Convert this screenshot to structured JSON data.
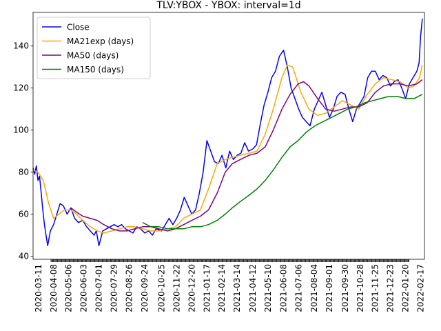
{
  "chart_data": {
    "type": "line",
    "title": "TLV:YBOX - YBOX: interval=1d",
    "xlabel": "",
    "ylabel": "",
    "grid": false,
    "legend_position": "top-left",
    "x_range": [
      "2020-03-01",
      "2022-02-24"
    ],
    "ylim": [
      38.5,
      156
    ],
    "y_ticks": [
      40,
      60,
      80,
      100,
      120,
      140
    ],
    "x_ticks": [
      "2020-03-11",
      "2020-04-08",
      "2020-05-06",
      "2020-06-03",
      "2020-07-01",
      "2020-07-29",
      "2020-08-26",
      "2020-09-24",
      "2020-10-25",
      "2020-11-22",
      "2020-12-20",
      "2021-01-17",
      "2021-02-14",
      "2021-03-14",
      "2021-04-12",
      "2021-05-10",
      "2021-06-08",
      "2021-07-06",
      "2021-08-04",
      "2021-09-01",
      "2021-09-30",
      "2021-10-28",
      "2021-11-25",
      "2021-12-23",
      "2022-01-20",
      "2022-02-17"
    ],
    "series": [
      {
        "name": "Close",
        "color": "#0000ff",
        "x": [
          "2020-03-01",
          "2020-03-04",
          "2020-03-07",
          "2020-03-10",
          "2020-03-13",
          "2020-03-16",
          "2020-03-19",
          "2020-03-22",
          "2020-03-25",
          "2020-03-28",
          "2020-04-02",
          "2020-04-08",
          "2020-04-14",
          "2020-04-20",
          "2020-04-26",
          "2020-05-03",
          "2020-05-10",
          "2020-05-17",
          "2020-05-24",
          "2020-06-01",
          "2020-06-08",
          "2020-06-15",
          "2020-06-22",
          "2020-06-26",
          "2020-07-01",
          "2020-07-08",
          "2020-07-15",
          "2020-07-22",
          "2020-07-29",
          "2020-08-05",
          "2020-08-12",
          "2020-08-19",
          "2020-08-26",
          "2020-09-02",
          "2020-09-09",
          "2020-09-16",
          "2020-09-24",
          "2020-10-01",
          "2020-10-08",
          "2020-10-15",
          "2020-10-25",
          "2020-11-01",
          "2020-11-08",
          "2020-11-15",
          "2020-11-22",
          "2020-11-29",
          "2020-12-06",
          "2020-12-13",
          "2020-12-20",
          "2020-12-27",
          "2021-01-03",
          "2021-01-10",
          "2021-01-17",
          "2021-01-24",
          "2021-01-31",
          "2021-02-07",
          "2021-02-14",
          "2021-02-21",
          "2021-02-28",
          "2021-03-07",
          "2021-03-14",
          "2021-03-21",
          "2021-03-28",
          "2021-04-04",
          "2021-04-12",
          "2021-04-19",
          "2021-04-26",
          "2021-05-03",
          "2021-05-10",
          "2021-05-17",
          "2021-05-24",
          "2021-05-31",
          "2021-06-08",
          "2021-06-15",
          "2021-06-22",
          "2021-06-29",
          "2021-07-06",
          "2021-07-13",
          "2021-07-20",
          "2021-07-27",
          "2021-08-04",
          "2021-08-11",
          "2021-08-18",
          "2021-08-25",
          "2021-09-01",
          "2021-09-08",
          "2021-09-15",
          "2021-09-22",
          "2021-09-30",
          "2021-10-07",
          "2021-10-14",
          "2021-10-21",
          "2021-10-28",
          "2021-11-04",
          "2021-11-11",
          "2021-11-18",
          "2021-11-25",
          "2021-12-02",
          "2021-12-09",
          "2021-12-16",
          "2021-12-23",
          "2021-12-30",
          "2022-01-06",
          "2022-01-13",
          "2022-01-20",
          "2022-01-27",
          "2022-02-03",
          "2022-02-10",
          "2022-02-14",
          "2022-02-17",
          "2022-02-20"
        ],
        "values": [
          82,
          79,
          83,
          76,
          78,
          70,
          62,
          55,
          50,
          45,
          52,
          55,
          60,
          65,
          64,
          60,
          63,
          58,
          56,
          57,
          54,
          52,
          50,
          52,
          45,
          52,
          53,
          54,
          55,
          54,
          55,
          53,
          52,
          51,
          54,
          53,
          51,
          52,
          50,
          53,
          52,
          55,
          58,
          55,
          58,
          62,
          68,
          64,
          60,
          62,
          70,
          80,
          95,
          90,
          85,
          84,
          88,
          82,
          90,
          86,
          88,
          89,
          94,
          90,
          91,
          93,
          103,
          112,
          118,
          125,
          128,
          135,
          138,
          130,
          120,
          115,
          110,
          106,
          104,
          102,
          110,
          114,
          118,
          112,
          106,
          110,
          116,
          118,
          117,
          110,
          104,
          110,
          113,
          116,
          125,
          128,
          128,
          124,
          126,
          125,
          121,
          123,
          124,
          120,
          115,
          122,
          125,
          128,
          132,
          145,
          153
        ]
      },
      {
        "name": "MA21exp (days)",
        "color": "#ffa500",
        "x": [
          "2020-03-01",
          "2020-03-10",
          "2020-03-20",
          "2020-03-30",
          "2020-04-08",
          "2020-04-18",
          "2020-04-28",
          "2020-05-10",
          "2020-05-20",
          "2020-06-01",
          "2020-06-15",
          "2020-06-28",
          "2020-07-10",
          "2020-07-25",
          "2020-08-08",
          "2020-08-22",
          "2020-09-05",
          "2020-09-20",
          "2020-10-05",
          "2020-10-20",
          "2020-11-05",
          "2020-11-20",
          "2020-12-05",
          "2020-12-20",
          "2021-01-05",
          "2021-01-20",
          "2021-02-05",
          "2021-02-20",
          "2021-03-05",
          "2021-03-20",
          "2021-04-05",
          "2021-04-20",
          "2021-05-05",
          "2021-05-20",
          "2021-06-05",
          "2021-06-15",
          "2021-06-25",
          "2021-07-10",
          "2021-07-25",
          "2021-08-10",
          "2021-08-25",
          "2021-09-10",
          "2021-09-25",
          "2021-10-10",
          "2021-10-25",
          "2021-11-10",
          "2021-11-25",
          "2021-12-10",
          "2021-12-25",
          "2022-01-10",
          "2022-01-25",
          "2022-02-05",
          "2022-02-15",
          "2022-02-20"
        ],
        "values": [
          81,
          80,
          76,
          65,
          58,
          60,
          62,
          62,
          60,
          57,
          54,
          52,
          51,
          52,
          53,
          54,
          54,
          53,
          52,
          52,
          53,
          54,
          58,
          60,
          62,
          72,
          84,
          86,
          87,
          88,
          89,
          90,
          98,
          110,
          125,
          131,
          130,
          118,
          110,
          107,
          108,
          111,
          114,
          112,
          110,
          117,
          122,
          125,
          124,
          123,
          120,
          121,
          125,
          131
        ]
      },
      {
        "name": "MA50 (days)",
        "color": "#800080",
        "x": [
          "2020-05-10",
          "2020-05-20",
          "2020-06-01",
          "2020-06-15",
          "2020-06-28",
          "2020-07-10",
          "2020-07-25",
          "2020-08-08",
          "2020-08-22",
          "2020-09-05",
          "2020-09-20",
          "2020-10-05",
          "2020-10-20",
          "2020-11-05",
          "2020-11-20",
          "2020-12-05",
          "2020-12-20",
          "2021-01-05",
          "2021-01-20",
          "2021-02-05",
          "2021-02-20",
          "2021-03-05",
          "2021-03-20",
          "2021-04-05",
          "2021-04-20",
          "2021-05-05",
          "2021-05-20",
          "2021-06-05",
          "2021-06-20",
          "2021-07-05",
          "2021-07-15",
          "2021-07-25",
          "2021-08-10",
          "2021-08-25",
          "2021-09-10",
          "2021-09-25",
          "2021-10-10",
          "2021-10-25",
          "2021-11-10",
          "2021-11-25",
          "2021-12-10",
          "2021-12-25",
          "2022-01-10",
          "2022-01-25",
          "2022-02-10",
          "2022-02-20"
        ],
        "values": [
          63,
          61,
          59,
          58,
          57,
          55,
          53,
          52,
          52,
          53,
          54,
          54,
          53,
          52,
          53,
          55,
          57,
          59,
          62,
          70,
          80,
          84,
          86,
          88,
          89,
          92,
          100,
          110,
          117,
          122,
          123,
          121,
          115,
          110,
          109,
          110,
          111,
          111,
          113,
          118,
          121,
          122,
          122,
          121,
          122,
          124
        ]
      },
      {
        "name": "MA150 (days)",
        "color": "#008000",
        "x": [
          "2020-09-20",
          "2020-10-05",
          "2020-10-20",
          "2020-11-05",
          "2020-11-20",
          "2020-12-05",
          "2020-12-20",
          "2021-01-05",
          "2021-01-20",
          "2021-02-05",
          "2021-02-20",
          "2021-03-05",
          "2021-03-20",
          "2021-04-05",
          "2021-04-20",
          "2021-05-05",
          "2021-05-20",
          "2021-06-05",
          "2021-06-20",
          "2021-07-05",
          "2021-07-20",
          "2021-08-05",
          "2021-08-20",
          "2021-09-05",
          "2021-09-20",
          "2021-10-05",
          "2021-10-20",
          "2021-11-05",
          "2021-11-20",
          "2021-12-05",
          "2021-12-20",
          "2022-01-05",
          "2022-01-20",
          "2022-02-05",
          "2022-02-20"
        ],
        "values": [
          56,
          54,
          54,
          53,
          53,
          53,
          54,
          54,
          55,
          57,
          60,
          63,
          66,
          69,
          72,
          76,
          81,
          87,
          92,
          95,
          99,
          102,
          104,
          106,
          108,
          110,
          111,
          113,
          114,
          115,
          116,
          116,
          115,
          115,
          117
        ]
      }
    ]
  }
}
